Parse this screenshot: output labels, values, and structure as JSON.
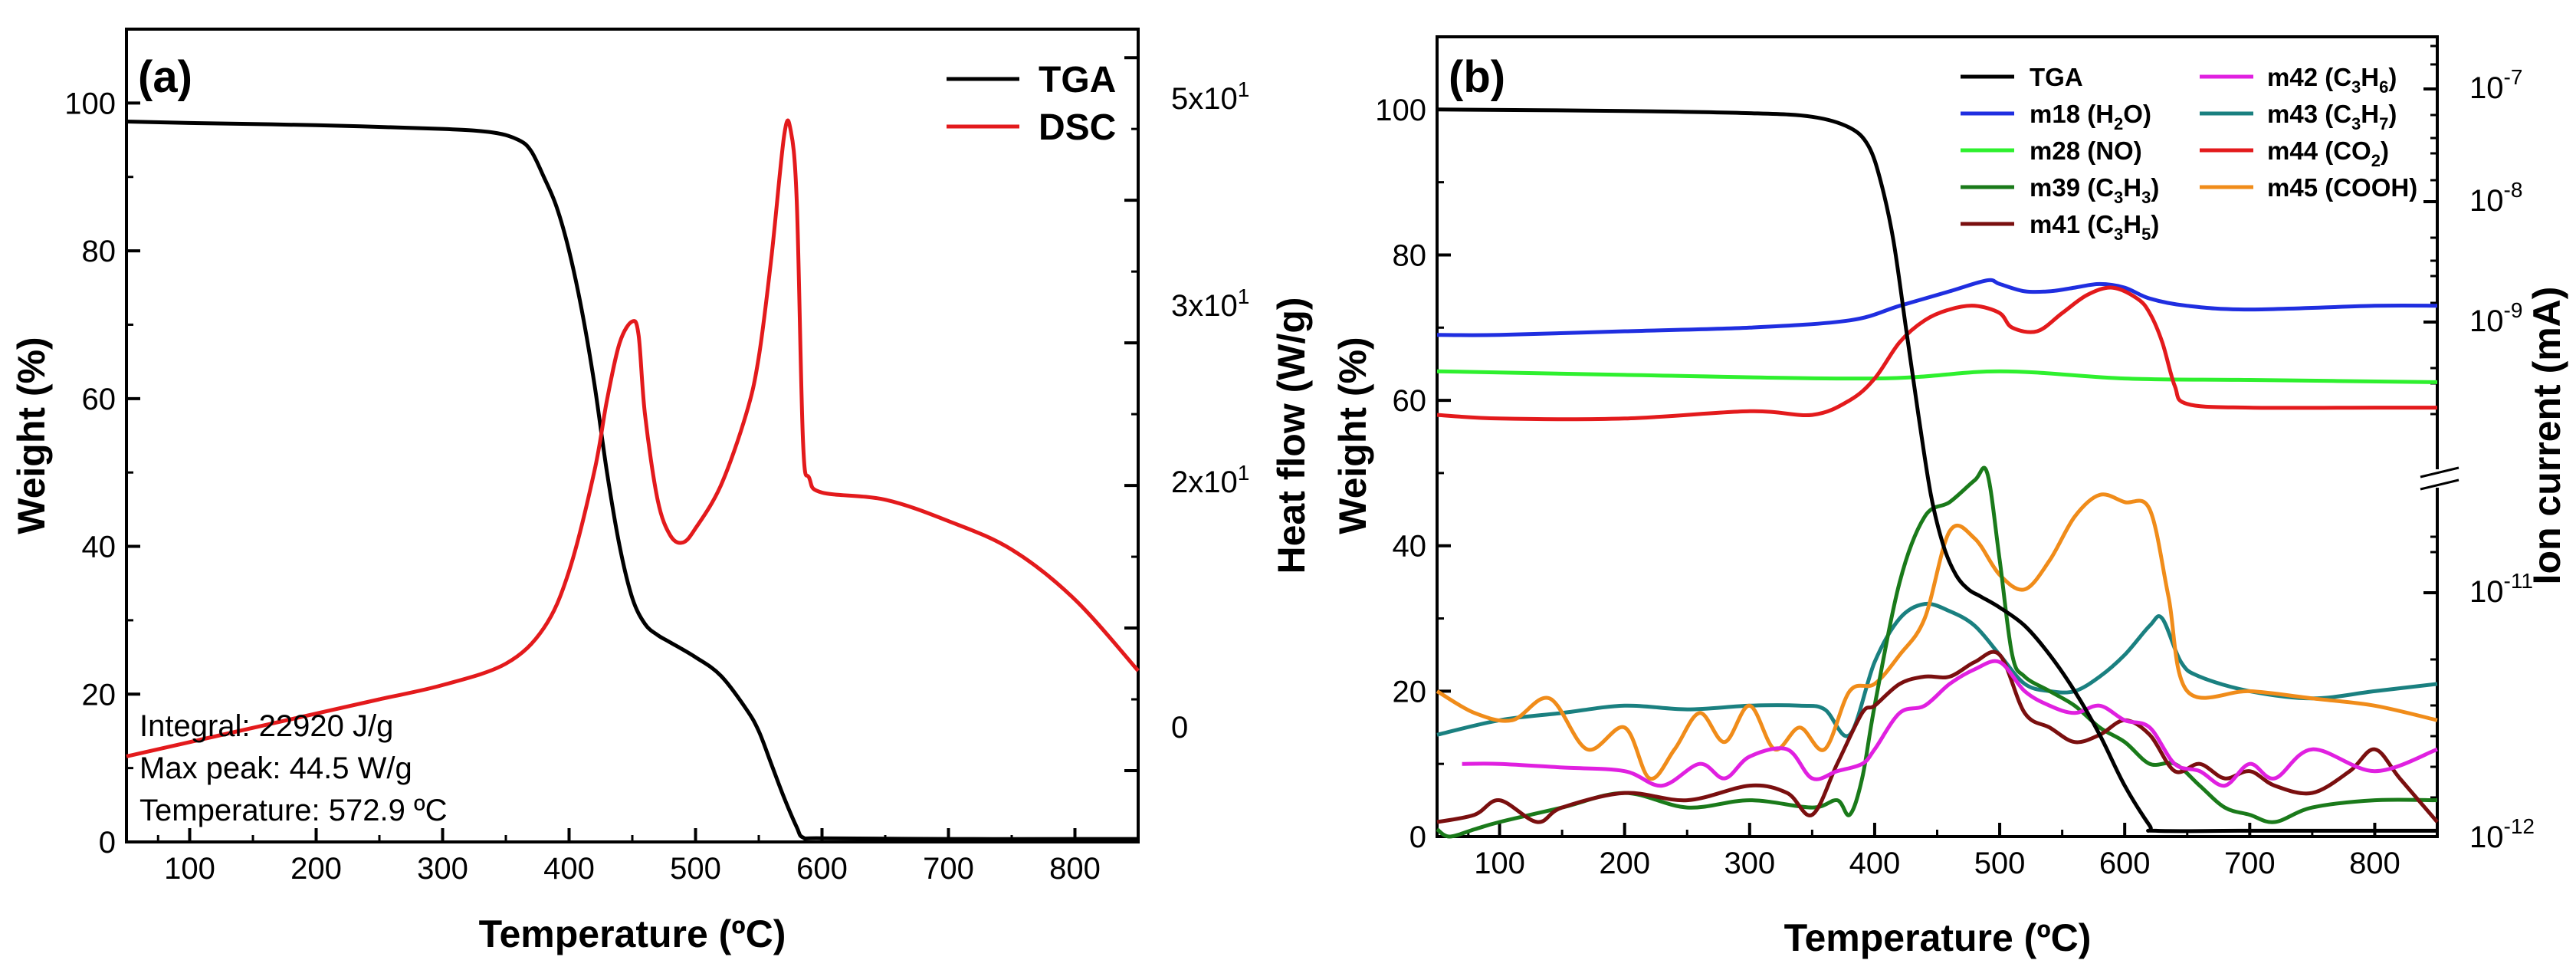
{
  "chart_data": [
    {
      "panel_label": "(a)",
      "type": "line",
      "xlabel": "Temperature (ºC)",
      "ylabel": "Weight (%)",
      "y2label": "Heat flow (W/g)",
      "xlim": [
        50,
        850
      ],
      "ylim": [
        0,
        110
      ],
      "y2lim": [
        -5,
        52
      ],
      "x_ticks": [
        "100",
        "200",
        "300",
        "400",
        "500",
        "600",
        "700",
        "800"
      ],
      "y_ticks": [
        "0",
        "20",
        "40",
        "60",
        "80",
        "100"
      ],
      "y2_ticks": [
        "0",
        "2x10",
        "3x10",
        "5x10"
      ],
      "y2_tick_labels": [
        {
          "base": "0",
          "exp": "",
          "value": 0
        },
        {
          "base": "2x10",
          "exp": "1",
          "value": 20
        },
        {
          "base": "3x10",
          "exp": "1",
          "value": 30
        },
        {
          "base": "5x10",
          "exp": "1",
          "value": 50
        }
      ],
      "legend": [
        {
          "name": "TGA",
          "color": "#000000"
        },
        {
          "name": "DSC",
          "color": "#e31a1c"
        }
      ],
      "annotations": [
        "Integral: 22920 J/g",
        "Max peak: 44.5 W/g",
        "Temperature: 572.9 ºC"
      ],
      "series": [
        {
          "name": "TGA",
          "axis": "left",
          "color": "#000000",
          "x": [
            50,
            100,
            200,
            300,
            340,
            360,
            370,
            380,
            390,
            400,
            410,
            420,
            430,
            440,
            450,
            460,
            470,
            480,
            500,
            520,
            540,
            550,
            560,
            570,
            580,
            585,
            600,
            700,
            800,
            850
          ],
          "y": [
            97.5,
            97.3,
            97,
            96.5,
            96,
            95,
            93.5,
            90,
            86,
            80,
            72,
            62,
            50,
            40,
            33,
            29.5,
            28,
            27,
            25,
            22.5,
            18,
            15,
            10.5,
            6,
            2,
            0.6,
            0.5,
            0.4,
            0.4,
            0.4
          ]
        },
        {
          "name": "DSC",
          "axis": "right",
          "color": "#e31a1c",
          "x": [
            50,
            100,
            150,
            200,
            250,
            300,
            350,
            380,
            400,
            420,
            430,
            440,
            450,
            455,
            460,
            470,
            480,
            490,
            500,
            520,
            540,
            550,
            560,
            570,
            575,
            580,
            585,
            590,
            600,
            650,
            700,
            750,
            800,
            850
          ],
          "y": [
            1,
            2,
            3,
            4,
            5,
            6,
            7.5,
            10,
            14,
            21,
            26,
            30,
            31.5,
            30.5,
            25,
            19,
            16.5,
            16,
            17,
            20,
            25,
            29,
            36,
            44.5,
            45,
            40,
            23,
            20.5,
            19.5,
            19,
            17.5,
            15.5,
            12,
            7
          ]
        }
      ]
    },
    {
      "panel_label": "(b)",
      "type": "line",
      "xlabel": "Temperature (ºC)",
      "ylabel": "Weight (%)",
      "y2label": "Ion current (mA)",
      "xlim": [
        50,
        850
      ],
      "ylim": [
        0,
        110
      ],
      "x_ticks": [
        "100",
        "200",
        "300",
        "400",
        "500",
        "600",
        "700",
        "800"
      ],
      "y_ticks": [
        "0",
        "20",
        "40",
        "60",
        "80",
        "100"
      ],
      "y2_tick_labels": [
        {
          "base": "10",
          "exp": "-7"
        },
        {
          "base": "10",
          "exp": "-8"
        },
        {
          "base": "10",
          "exp": "-9"
        },
        {
          "base": "10",
          "exp": "-11"
        },
        {
          "base": "10",
          "exp": "-12"
        }
      ],
      "legend": [
        {
          "name": "TGA",
          "color": "#000000",
          "base": "TGA",
          "sub1": "",
          "mid": "",
          "sub2": "",
          "tail": ""
        },
        {
          "name": "m18 (H2O)",
          "color": "#1f2ee0",
          "base": "m18 (H",
          "sub1": "2",
          "mid": "O)",
          "sub2": "",
          "tail": ""
        },
        {
          "name": "m28 (NO)",
          "color": "#2ef02e",
          "base": "m28 (NO)",
          "sub1": "",
          "mid": "",
          "sub2": "",
          "tail": ""
        },
        {
          "name": "m39 (C3H3)",
          "color": "#1a7a1a",
          "base": "m39 (C",
          "sub1": "3",
          "mid": "H",
          "sub2": "3",
          "tail": ")"
        },
        {
          "name": "m41 (C3H5)",
          "color": "#7a0f0f",
          "base": "m41 (C",
          "sub1": "3",
          "mid": "H",
          "sub2": "5",
          "tail": ")"
        },
        {
          "name": "m42 (C3H6)",
          "color": "#e020e0",
          "base": "m42 (C",
          "sub1": "3",
          "mid": "H",
          "sub2": "6",
          "tail": ")"
        },
        {
          "name": "m43 (C3H7)",
          "color": "#1a8080",
          "base": "m43 (C",
          "sub1": "3",
          "mid": "H",
          "sub2": "7",
          "tail": ")"
        },
        {
          "name": "m44 (CO2)",
          "color": "#e31a1c",
          "base": "m44 (CO",
          "sub1": "2",
          "mid": ")",
          "sub2": "",
          "tail": ""
        },
        {
          "name": "m45 (COOH)",
          "color": "#f08c1a",
          "base": "m45 (COOH)",
          "sub1": "",
          "mid": "",
          "sub2": "",
          "tail": ""
        }
      ],
      "series": [
        {
          "name": "TGA",
          "color": "#000000",
          "x": [
            50,
            200,
            300,
            350,
            380,
            395,
            405,
            415,
            425,
            435,
            445,
            455,
            465,
            475,
            485,
            500,
            520,
            540,
            560,
            580,
            600,
            620,
            625,
            700,
            850
          ],
          "y": [
            100,
            99.8,
            99.5,
            99,
            97.5,
            95,
            90,
            82,
            70,
            58,
            47,
            40,
            36,
            34,
            33,
            31.5,
            29,
            25,
            20,
            14,
            7,
            1.5,
            0.8,
            0.8,
            0.8
          ]
        },
        {
          "name": "m18 (H2O)",
          "color": "#1f2ee0",
          "x": [
            50,
            100,
            200,
            300,
            380,
            420,
            460,
            490,
            500,
            520,
            540,
            560,
            580,
            600,
            620,
            650,
            700,
            800,
            850
          ],
          "y": [
            69,
            69,
            69.5,
            70,
            71,
            73,
            75,
            76.5,
            76,
            75,
            75,
            75.5,
            76,
            75.5,
            74,
            73,
            72.5,
            73,
            73
          ]
        },
        {
          "name": "m28 (NO)",
          "color": "#2ef02e",
          "x": [
            50,
            200,
            400,
            500,
            600,
            700,
            850
          ],
          "y": [
            64,
            63.5,
            63,
            64,
            63,
            62.8,
            62.5
          ]
        },
        {
          "name": "m44 (CO2)",
          "color": "#e31a1c",
          "x": [
            50,
            100,
            200,
            300,
            350,
            380,
            400,
            420,
            440,
            460,
            480,
            500,
            510,
            530,
            550,
            570,
            590,
            610,
            620,
            630,
            640,
            650,
            700,
            800,
            850
          ],
          "y": [
            58,
            57.5,
            57.5,
            58.5,
            58,
            60,
            63,
            68,
            71,
            72.5,
            73,
            72,
            70,
            69.5,
            72,
            74.5,
            75.5,
            74,
            72,
            68,
            62,
            59.5,
            59,
            59,
            59
          ]
        },
        {
          "name": "m43 (C3H7)",
          "color": "#1a8080",
          "x": [
            50,
            100,
            150,
            200,
            250,
            300,
            340,
            360,
            380,
            400,
            420,
            440,
            460,
            480,
            500,
            520,
            540,
            560,
            580,
            600,
            620,
            630,
            645,
            660,
            700,
            750,
            800,
            850
          ],
          "y": [
            14,
            16,
            17,
            18,
            17.5,
            18,
            18,
            17.5,
            14,
            24,
            30,
            32,
            31,
            29,
            25,
            21,
            20,
            20,
            22,
            25,
            29,
            30,
            24,
            22,
            20,
            19,
            20,
            21
          ]
        },
        {
          "name": "m45 (COOH)",
          "color": "#f08c1a",
          "x": [
            50,
            80,
            110,
            140,
            170,
            200,
            220,
            240,
            260,
            280,
            300,
            320,
            340,
            360,
            380,
            400,
            420,
            440,
            460,
            480,
            500,
            520,
            540,
            560,
            580,
            600,
            620,
            635,
            650,
            700,
            750,
            800,
            850
          ],
          "y": [
            20,
            17,
            16,
            19,
            12,
            15,
            8,
            12,
            17,
            13,
            18,
            12,
            15,
            12,
            20,
            21,
            25,
            30,
            42,
            41,
            36,
            34,
            38,
            44,
            47,
            46,
            45,
            33,
            20,
            20,
            19,
            18,
            16
          ]
        },
        {
          "name": "m39 (C3H3)",
          "color": "#1a7a1a",
          "x": [
            50,
            60,
            80,
            100,
            150,
            200,
            250,
            300,
            350,
            370,
            380,
            390,
            400,
            420,
            440,
            460,
            480,
            490,
            500,
            510,
            520,
            540,
            560,
            580,
            600,
            620,
            640,
            660,
            680,
            700,
            720,
            750,
            800,
            850
          ],
          "y": [
            1,
            0,
            1,
            2,
            4,
            6,
            4,
            5,
            4,
            5,
            3,
            8,
            18,
            35,
            44,
            46,
            49,
            50,
            38,
            25,
            22,
            20,
            18,
            15,
            13,
            10,
            10,
            7,
            4,
            3,
            2,
            4,
            5,
            5
          ]
        },
        {
          "name": "m41 (C3H5)",
          "color": "#7a0f0f",
          "x": [
            50,
            80,
            100,
            130,
            150,
            200,
            250,
            300,
            330,
            350,
            370,
            390,
            400,
            420,
            440,
            460,
            480,
            500,
            520,
            540,
            560,
            580,
            600,
            620,
            640,
            660,
            680,
            700,
            720,
            750,
            780,
            800,
            820,
            850
          ],
          "y": [
            2,
            3,
            5,
            2,
            4,
            6,
            5,
            7,
            6,
            3,
            10,
            17,
            18,
            21,
            22,
            22,
            24,
            25,
            17,
            15,
            13,
            14,
            16,
            14,
            9,
            10,
            8,
            9,
            7,
            6,
            9,
            12,
            8,
            2
          ]
        },
        {
          "name": "m42 (C3H6)",
          "color": "#e020e0",
          "x": [
            70,
            100,
            150,
            200,
            230,
            260,
            280,
            300,
            330,
            350,
            370,
            390,
            400,
            420,
            440,
            460,
            480,
            500,
            520,
            540,
            560,
            580,
            600,
            620,
            640,
            660,
            680,
            700,
            720,
            750,
            800,
            850
          ],
          "y": [
            10,
            10,
            9.5,
            9,
            7,
            10,
            8,
            11,
            12,
            8,
            9,
            10,
            12,
            17,
            18,
            21,
            23,
            24,
            20,
            18,
            17,
            18,
            16,
            15,
            10,
            9,
            7,
            10,
            8,
            12,
            9,
            12
          ]
        }
      ]
    }
  ]
}
